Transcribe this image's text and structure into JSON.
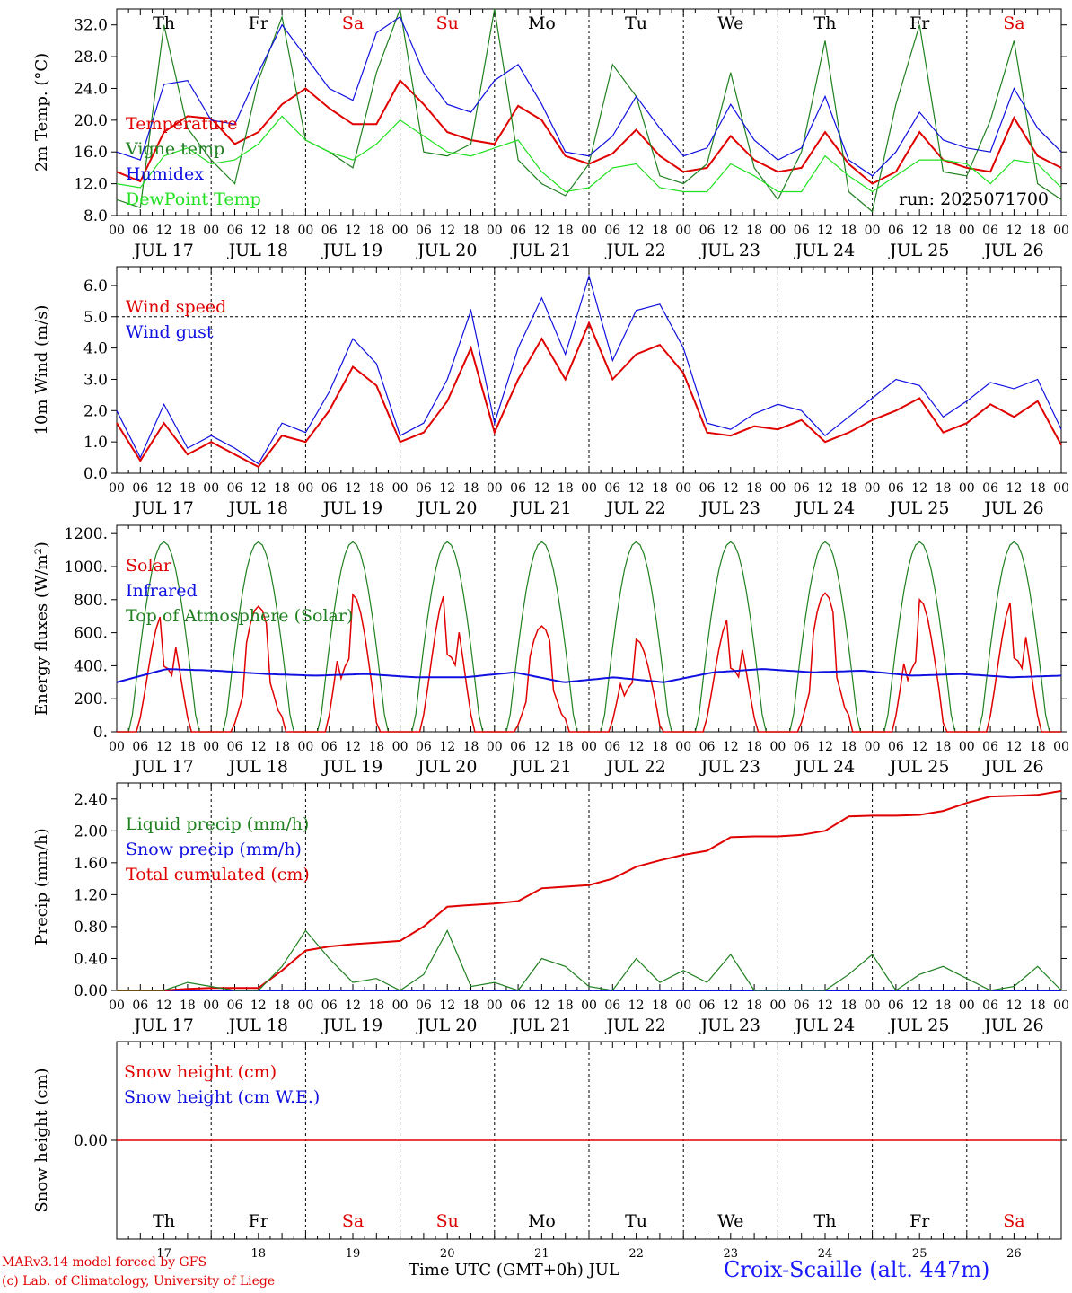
{
  "chart_data": [
    {
      "type": "line",
      "ylabel": "2m Temp. (°C)",
      "ylim": [
        8,
        34
      ],
      "yticks": [
        "8.0",
        "12.0",
        "16.0",
        "20.0",
        "24.0",
        "28.0",
        "32.0"
      ],
      "legend": [
        "Temperature",
        "Vigne temp",
        "Humidex",
        "DewPoint Temp"
      ],
      "annotation": "run: 2025071700",
      "day_names": [
        "Th",
        "Fr",
        "Sa",
        "Su",
        "Mo",
        "Tu",
        "We",
        "Th",
        "Fr",
        "Sa"
      ],
      "x_hours": [
        0,
        6,
        12,
        18,
        24,
        30,
        36,
        42,
        48,
        54,
        60,
        66,
        72,
        78,
        84,
        90,
        96,
        102,
        108,
        114,
        120,
        126,
        132,
        138,
        144,
        150,
        156,
        162,
        168,
        174,
        180,
        186,
        192,
        198,
        204,
        210,
        216,
        222,
        228,
        234,
        240
      ],
      "series": [
        {
          "name": "Temperature",
          "color": "#e00000",
          "values": [
            13.5,
            12.3,
            18.5,
            20.5,
            20.2,
            17.0,
            18.5,
            22.0,
            24.0,
            21.5,
            19.5,
            19.5,
            25.0,
            22.0,
            18.5,
            17.5,
            17.0,
            21.8,
            20.0,
            15.5,
            14.5,
            15.8,
            18.8,
            15.5,
            13.5,
            14.0,
            18.0,
            15.0,
            13.5,
            14.0,
            18.5,
            14.5,
            12.0,
            13.5,
            18.5,
            15.0,
            14.0,
            13.5,
            20.3,
            15.5,
            14.0
          ]
        },
        {
          "name": "Vigne temp",
          "color": "#208020",
          "values": [
            10.0,
            9.0,
            32.0,
            19.0,
            15.0,
            12.0,
            25.0,
            33.0,
            17.5,
            16.0,
            14.0,
            26.0,
            34.0,
            16.0,
            15.5,
            17.0,
            34.0,
            15.0,
            12.0,
            10.5,
            14.5,
            27.0,
            23.0,
            13.0,
            12.0,
            14.5,
            26.0,
            14.0,
            10.0,
            16.0,
            30.0,
            11.0,
            8.5,
            22.0,
            32.0,
            13.5,
            13.0,
            20.0,
            30.0,
            12.0,
            10.0
          ]
        },
        {
          "name": "Humidex",
          "color": "#1010e0",
          "values": [
            16.0,
            15.0,
            24.5,
            25.0,
            20.0,
            19.5,
            26.0,
            32.0,
            28.0,
            24.0,
            22.5,
            31.0,
            33.0,
            26.0,
            22.0,
            21.0,
            25.0,
            27.0,
            22.0,
            16.0,
            15.5,
            18.0,
            23.0,
            19.0,
            15.5,
            16.5,
            22.0,
            17.5,
            15.0,
            16.5,
            23.0,
            15.0,
            13.0,
            16.0,
            21.0,
            17.5,
            16.5,
            16.0,
            24.0,
            19.0,
            16.0
          ]
        },
        {
          "name": "DewPoint Temp",
          "color": "#20e020",
          "values": [
            12.0,
            11.5,
            15.5,
            16.5,
            14.5,
            15.0,
            17.0,
            20.5,
            17.5,
            16.0,
            15.0,
            17.0,
            20.0,
            18.0,
            16.0,
            15.5,
            16.5,
            17.5,
            13.5,
            11.0,
            11.5,
            14.0,
            14.5,
            11.5,
            11.0,
            11.0,
            14.5,
            13.0,
            11.0,
            11.0,
            15.5,
            13.0,
            11.0,
            13.0,
            15.0,
            15.0,
            14.5,
            12.0,
            15.0,
            14.5,
            11.5
          ]
        }
      ]
    },
    {
      "type": "line",
      "ylabel": "10m Wind (m/s)",
      "ylim": [
        0,
        6.6
      ],
      "yticks": [
        "0.0",
        "1.0",
        "2.0",
        "3.0",
        "4.0",
        "5.0",
        "6.0"
      ],
      "legend": [
        "Wind speed",
        "Wind gust"
      ],
      "x_hours": [
        0,
        6,
        12,
        18,
        24,
        30,
        36,
        42,
        48,
        54,
        60,
        66,
        72,
        78,
        84,
        90,
        96,
        102,
        108,
        114,
        120,
        126,
        132,
        138,
        144,
        150,
        156,
        162,
        168,
        174,
        180,
        186,
        192,
        198,
        204,
        210,
        216,
        222,
        228,
        234,
        240
      ],
      "series": [
        {
          "name": "Wind speed",
          "color": "#e00000",
          "values": [
            1.6,
            0.4,
            1.6,
            0.6,
            1.0,
            0.6,
            0.2,
            1.2,
            1.0,
            2.0,
            3.4,
            2.8,
            1.0,
            1.3,
            2.3,
            4.0,
            1.3,
            3.0,
            4.3,
            3.0,
            4.8,
            3.0,
            3.8,
            4.1,
            3.2,
            1.3,
            1.2,
            1.5,
            1.4,
            1.7,
            1.0,
            1.3,
            1.7,
            2.0,
            2.4,
            1.3,
            1.6,
            2.2,
            1.8,
            2.3,
            0.9
          ]
        },
        {
          "name": "Wind gust",
          "color": "#1010e0",
          "values": [
            2.0,
            0.5,
            2.2,
            0.8,
            1.2,
            0.8,
            0.3,
            1.6,
            1.3,
            2.6,
            4.3,
            3.5,
            1.2,
            1.6,
            3.0,
            5.2,
            1.6,
            4.0,
            5.6,
            3.8,
            6.3,
            3.6,
            5.2,
            5.4,
            4.0,
            1.6,
            1.4,
            1.9,
            2.2,
            2.0,
            1.2,
            1.8,
            2.4,
            3.0,
            2.8,
            1.8,
            2.3,
            2.9,
            2.7,
            3.0,
            1.4
          ]
        }
      ]
    },
    {
      "type": "line",
      "ylabel": "Energy fluxes (W/m²)",
      "ylim": [
        0,
        1250
      ],
      "yticks": [
        "0.",
        "200.",
        "400.",
        "600.",
        "800.",
        "1000.",
        "1200."
      ],
      "legend": [
        "Solar",
        "Infrared",
        "Top of Atmosphere (Solar)"
      ],
      "day_peak_solar": [
        720,
        760,
        830,
        850,
        640,
        560,
        700,
        840,
        800,
        810
      ],
      "infrared_values": [
        300,
        380,
        370,
        350,
        340,
        350,
        330,
        330,
        360,
        300,
        330,
        300,
        360,
        380,
        360,
        370,
        340,
        350,
        330,
        340
      ],
      "toa_peak": 1150
    },
    {
      "type": "line",
      "ylabel": "Precip (mm/h)",
      "ylim": [
        0,
        2.6
      ],
      "yticks": [
        "0.00",
        "0.40",
        "0.80",
        "1.20",
        "1.60",
        "2.00",
        "2.40"
      ],
      "legend": [
        "Liquid precip (mm/h)",
        "Snow precip (mm/h)",
        "Total cumulated (cm)"
      ],
      "x_hours": [
        0,
        6,
        12,
        18,
        24,
        30,
        36,
        42,
        48,
        54,
        60,
        66,
        72,
        78,
        84,
        90,
        96,
        102,
        108,
        114,
        120,
        126,
        132,
        138,
        144,
        150,
        156,
        162,
        168,
        174,
        180,
        186,
        192,
        198,
        204,
        210,
        216,
        222,
        228,
        234,
        240
      ],
      "series": [
        {
          "name": "Total cumulated (cm)",
          "color": "#e00000",
          "values": [
            0.0,
            0.0,
            0.0,
            0.02,
            0.03,
            0.03,
            0.03,
            0.25,
            0.5,
            0.55,
            0.58,
            0.6,
            0.62,
            0.8,
            1.05,
            1.07,
            1.09,
            1.12,
            1.28,
            1.3,
            1.32,
            1.4,
            1.55,
            1.63,
            1.7,
            1.75,
            1.92,
            1.93,
            1.93,
            1.95,
            2.0,
            2.18,
            2.19,
            2.19,
            2.2,
            2.25,
            2.35,
            2.43,
            2.44,
            2.45,
            2.5
          ]
        },
        {
          "name": "Liquid precip (mm/h)",
          "color": "#208020",
          "values": [
            0.0,
            0.0,
            0.0,
            0.1,
            0.05,
            0.0,
            0.0,
            0.3,
            0.75,
            0.4,
            0.1,
            0.15,
            0.0,
            0.2,
            0.75,
            0.05,
            0.1,
            0.0,
            0.4,
            0.3,
            0.05,
            0.0,
            0.4,
            0.1,
            0.25,
            0.1,
            0.45,
            0.0,
            0.0,
            0.0,
            0.0,
            0.2,
            0.45,
            0.0,
            0.2,
            0.3,
            0.15,
            0.0,
            0.05,
            0.3,
            0.0
          ]
        }
      ]
    },
    {
      "type": "line",
      "ylabel": "Snow height (cm)",
      "yticks": [
        "0.00"
      ],
      "legend": [
        "Snow height (cm)",
        "Snow height (cm W.E.)"
      ],
      "day_names": [
        "Th",
        "Fr",
        "Sa",
        "Su",
        "Mo",
        "Tu",
        "We",
        "Th",
        "Fr",
        "Sa"
      ],
      "day_numbers": [
        "17",
        "18",
        "19",
        "20",
        "21",
        "22",
        "23",
        "24",
        "25",
        "26"
      ]
    }
  ],
  "x_axis": {
    "hour_labels": [
      "00",
      "06",
      "12",
      "18"
    ],
    "end_label": "00",
    "date_labels": [
      "JUL 17",
      "JUL 18",
      "JUL 19",
      "JUL 20",
      "JUL 21",
      "JUL 22",
      "JUL 23",
      "JUL 24",
      "JUL 25",
      "JUL 26"
    ]
  },
  "colors": {
    "red": "#e00000",
    "green": "#208020",
    "blue": "#1010e0",
    "light_green": "#20e020",
    "weekend": "#e00000"
  },
  "footer": {
    "model_line": "MARv3.14 model forced by GFS",
    "copyright_line": "(c) Lab. of Climatology, University of Liege",
    "axis_title": "Time UTC (GMT+0h) JUL",
    "site": "Croix-Scaille (alt. 447m)"
  }
}
